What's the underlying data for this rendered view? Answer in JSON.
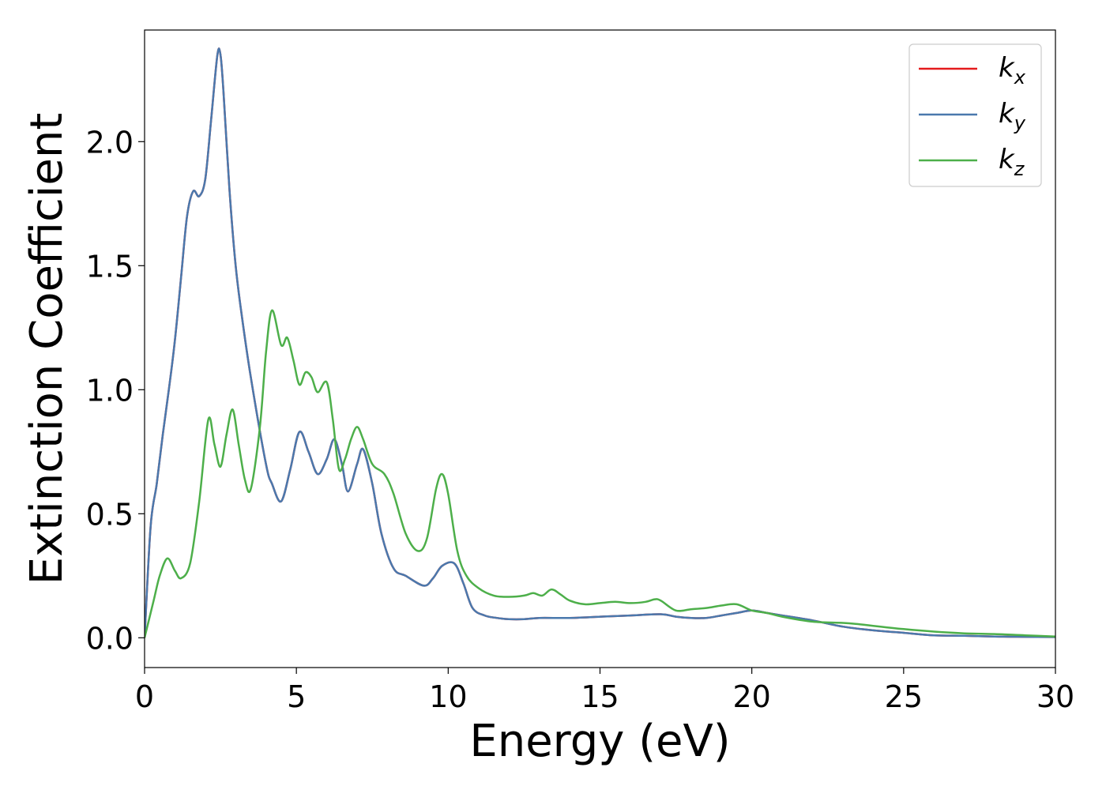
{
  "chart_data": {
    "type": "line",
    "xlabel": "Energy (eV)",
    "ylabel": "Extinction Coefficient",
    "xlim": [
      0,
      30
    ],
    "ylim": [
      -0.12,
      2.45
    ],
    "xticks": [
      0,
      5,
      10,
      15,
      20,
      25,
      30
    ],
    "yticks": [
      0.0,
      0.5,
      1.0,
      1.5,
      2.0
    ],
    "xtick_labels": [
      "0",
      "5",
      "10",
      "15",
      "20",
      "25",
      "30"
    ],
    "ytick_labels": [
      "0.0",
      "0.5",
      "1.0",
      "1.5",
      "2.0"
    ],
    "grid": false,
    "legend_position": "top-right",
    "series": [
      {
        "name": "k",
        "subscript": "x",
        "color": "#e41a1c",
        "x": [
          0,
          0.2,
          0.4,
          0.6,
          0.8,
          1.0,
          1.2,
          1.4,
          1.6,
          1.8,
          2.0,
          2.2,
          2.4,
          2.5,
          2.6,
          2.8,
          3.0,
          3.2,
          3.5,
          4.0,
          4.2,
          4.5,
          4.8,
          5.1,
          5.4,
          5.7,
          6.0,
          6.25,
          6.5,
          6.7,
          7.0,
          7.2,
          7.5,
          7.8,
          8.2,
          8.6,
          9.2,
          9.5,
          9.8,
          10.2,
          10.5,
          10.8,
          11.2,
          11.6,
          12.0,
          12.5,
          13.0,
          14.0,
          15.0,
          16.0,
          17.0,
          17.5,
          18.0,
          18.5,
          19.0,
          19.5,
          20.0,
          20.5,
          21.0,
          22.0,
          23.0,
          24.0,
          25.0,
          26.0,
          27.0,
          28.0,
          29.0,
          30.0
        ],
        "values": [
          0.0,
          0.45,
          0.62,
          0.82,
          1.0,
          1.2,
          1.45,
          1.7,
          1.8,
          1.78,
          1.85,
          2.1,
          2.35,
          2.35,
          2.2,
          1.8,
          1.5,
          1.3,
          1.05,
          0.7,
          0.62,
          0.55,
          0.68,
          0.83,
          0.75,
          0.66,
          0.72,
          0.8,
          0.7,
          0.59,
          0.7,
          0.76,
          0.62,
          0.42,
          0.28,
          0.25,
          0.21,
          0.24,
          0.29,
          0.3,
          0.22,
          0.12,
          0.09,
          0.08,
          0.075,
          0.075,
          0.08,
          0.08,
          0.085,
          0.09,
          0.095,
          0.085,
          0.08,
          0.08,
          0.09,
          0.1,
          0.11,
          0.1,
          0.09,
          0.07,
          0.045,
          0.03,
          0.02,
          0.01,
          0.008,
          0.005,
          0.004,
          0.003
        ]
      },
      {
        "name": "k",
        "subscript": "y",
        "color": "#4a79ad",
        "x": [
          0,
          0.2,
          0.4,
          0.6,
          0.8,
          1.0,
          1.2,
          1.4,
          1.6,
          1.8,
          2.0,
          2.2,
          2.4,
          2.5,
          2.6,
          2.8,
          3.0,
          3.2,
          3.5,
          4.0,
          4.2,
          4.5,
          4.8,
          5.1,
          5.4,
          5.7,
          6.0,
          6.25,
          6.5,
          6.7,
          7.0,
          7.2,
          7.5,
          7.8,
          8.2,
          8.6,
          9.2,
          9.5,
          9.8,
          10.2,
          10.5,
          10.8,
          11.2,
          11.6,
          12.0,
          12.5,
          13.0,
          14.0,
          15.0,
          16.0,
          17.0,
          17.5,
          18.0,
          18.5,
          19.0,
          19.5,
          20.0,
          20.5,
          21.0,
          22.0,
          23.0,
          24.0,
          25.0,
          26.0,
          27.0,
          28.0,
          29.0,
          30.0
        ],
        "values": [
          0.0,
          0.45,
          0.62,
          0.82,
          1.0,
          1.2,
          1.45,
          1.7,
          1.8,
          1.78,
          1.85,
          2.1,
          2.35,
          2.35,
          2.2,
          1.8,
          1.5,
          1.3,
          1.05,
          0.7,
          0.62,
          0.55,
          0.68,
          0.83,
          0.75,
          0.66,
          0.72,
          0.8,
          0.7,
          0.59,
          0.7,
          0.76,
          0.62,
          0.42,
          0.28,
          0.25,
          0.21,
          0.24,
          0.29,
          0.3,
          0.22,
          0.12,
          0.09,
          0.08,
          0.075,
          0.075,
          0.08,
          0.08,
          0.085,
          0.09,
          0.095,
          0.085,
          0.08,
          0.08,
          0.09,
          0.1,
          0.11,
          0.1,
          0.09,
          0.07,
          0.045,
          0.03,
          0.02,
          0.01,
          0.008,
          0.005,
          0.004,
          0.003
        ]
      },
      {
        "name": "k",
        "subscript": "z",
        "color": "#4daf4a",
        "x": [
          0,
          0.3,
          0.5,
          0.75,
          1.0,
          1.2,
          1.5,
          1.8,
          2.1,
          2.3,
          2.5,
          2.7,
          2.9,
          3.1,
          3.3,
          3.5,
          3.8,
          4.0,
          4.2,
          4.5,
          4.7,
          4.9,
          5.1,
          5.3,
          5.5,
          5.7,
          6.0,
          6.2,
          6.4,
          6.6,
          6.8,
          7.0,
          7.2,
          7.5,
          7.9,
          8.2,
          8.6,
          9.0,
          9.3,
          9.6,
          9.8,
          10.0,
          10.3,
          10.6,
          11.0,
          11.5,
          12.0,
          12.5,
          12.8,
          13.1,
          13.4,
          13.7,
          14.0,
          14.5,
          15.0,
          15.5,
          16.0,
          16.5,
          16.8,
          17.0,
          17.5,
          18.0,
          18.5,
          19.0,
          19.5,
          20.0,
          20.5,
          21.0,
          22.0,
          23.0,
          23.5,
          24.0,
          25.0,
          26.0,
          27.0,
          28.0,
          29.0,
          30.0
        ],
        "values": [
          0.0,
          0.15,
          0.25,
          0.32,
          0.27,
          0.24,
          0.3,
          0.55,
          0.88,
          0.78,
          0.69,
          0.82,
          0.92,
          0.78,
          0.64,
          0.6,
          0.85,
          1.15,
          1.32,
          1.18,
          1.21,
          1.12,
          1.02,
          1.07,
          1.05,
          0.99,
          1.03,
          0.88,
          0.68,
          0.72,
          0.8,
          0.85,
          0.8,
          0.7,
          0.66,
          0.58,
          0.42,
          0.35,
          0.4,
          0.6,
          0.66,
          0.58,
          0.35,
          0.25,
          0.2,
          0.17,
          0.165,
          0.17,
          0.18,
          0.17,
          0.195,
          0.175,
          0.15,
          0.135,
          0.14,
          0.145,
          0.14,
          0.145,
          0.155,
          0.15,
          0.11,
          0.115,
          0.12,
          0.13,
          0.135,
          0.11,
          0.1,
          0.085,
          0.065,
          0.06,
          0.055,
          0.048,
          0.035,
          0.025,
          0.018,
          0.015,
          0.01,
          0.005
        ]
      }
    ]
  }
}
